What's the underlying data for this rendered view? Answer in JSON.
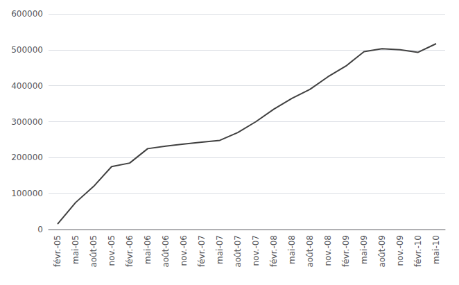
{
  "chart_data": {
    "type": "line",
    "categories": [
      "févr.-05",
      "mai-05",
      "août-05",
      "nov.-05",
      "févr.-06",
      "mai-06",
      "août-06",
      "nov.-06",
      "févr.-07",
      "mai-07",
      "août-07",
      "nov.-07",
      "févr.-08",
      "mai-08",
      "août-08",
      "nov.-08",
      "févr.-09",
      "mai-09",
      "août-09",
      "nov.-09",
      "févr.-10",
      "mai-10"
    ],
    "values": [
      15000,
      75000,
      120000,
      175000,
      185000,
      225000,
      232000,
      238000,
      243000,
      248000,
      270000,
      300000,
      335000,
      365000,
      390000,
      425000,
      455000,
      495000,
      503000,
      500000,
      493000,
      517000
    ],
    "color": "#404040",
    "ylim": [
      0,
      600000
    ],
    "yticks": [
      0,
      100000,
      200000,
      300000,
      400000,
      500000,
      600000
    ],
    "grid": true
  }
}
